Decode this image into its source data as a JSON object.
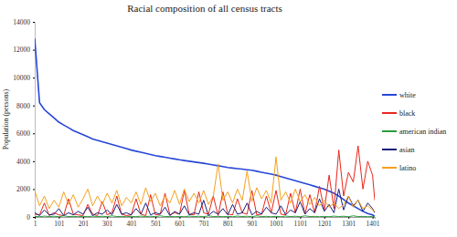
{
  "chart_data": {
    "type": "line",
    "title": "Racial composition of all census tracts",
    "y_label": "Population (persons)",
    "legend": "right",
    "x": [
      1,
      21,
      41,
      61,
      81,
      101,
      121,
      141,
      161,
      181,
      201,
      221,
      241,
      261,
      281,
      301,
      321,
      341,
      361,
      381,
      401,
      421,
      441,
      461,
      481,
      501,
      521,
      541,
      561,
      581,
      601,
      621,
      641,
      661,
      681,
      701,
      721,
      741,
      761,
      781,
      801,
      821,
      841,
      861,
      881,
      901,
      921,
      941,
      961,
      981,
      1001,
      1021,
      1041,
      1061,
      1081,
      1101,
      1121,
      1141,
      1161,
      1181,
      1201,
      1221,
      1241,
      1261,
      1281,
      1301,
      1321,
      1341,
      1361,
      1381,
      1401,
      1410
    ],
    "xlim": [
      1,
      1410
    ],
    "xticks": [
      1,
      101,
      201,
      301,
      401,
      501,
      601,
      701,
      801,
      901,
      1001,
      1101,
      1201,
      1301,
      1401
    ],
    "ylim": [
      0,
      14000
    ],
    "yticks": [
      0,
      2000,
      4000,
      6000,
      8000,
      10000,
      12000,
      14000
    ],
    "series": [
      {
        "name": "white",
        "color": "#2747d8",
        "values": [
          12800,
          8200,
          7700,
          7400,
          7100,
          6800,
          6600,
          6400,
          6200,
          6050,
          5900,
          5750,
          5600,
          5500,
          5400,
          5300,
          5200,
          5100,
          5000,
          4900,
          4800,
          4720,
          4640,
          4560,
          4480,
          4400,
          4340,
          4280,
          4220,
          4160,
          4100,
          4050,
          4000,
          3950,
          3900,
          3850,
          3790,
          3730,
          3670,
          3610,
          3550,
          3510,
          3470,
          3430,
          3390,
          3350,
          3280,
          3210,
          3140,
          3070,
          3000,
          2900,
          2800,
          2700,
          2600,
          2500,
          2400,
          2300,
          2200,
          2100,
          2000,
          1850,
          1700,
          1500,
          1250,
          1000,
          800,
          600,
          400,
          250,
          150,
          50
        ]
      },
      {
        "name": "black",
        "color": "#e8261c",
        "values": [
          200,
          150,
          1000,
          100,
          300,
          150,
          100,
          1300,
          200,
          150,
          100,
          900,
          200,
          100,
          1100,
          150,
          300,
          1500,
          200,
          100,
          150,
          1300,
          200,
          100,
          1600,
          150,
          200,
          1700,
          150,
          300,
          200,
          1900,
          200,
          150,
          1800,
          300,
          200,
          1500,
          100,
          1800,
          200,
          150,
          1300,
          300,
          200,
          1900,
          150,
          200,
          1500,
          300,
          1900,
          200,
          150,
          1700,
          300,
          2000,
          200,
          1600,
          300,
          2200,
          500,
          3000,
          600,
          4800,
          1500,
          3200,
          2500,
          5100,
          2000,
          4000,
          3000,
          1200
        ]
      },
      {
        "name": "american indian",
        "color": "#2a9d3a",
        "values": [
          40,
          20,
          60,
          30,
          50,
          20,
          80,
          30,
          40,
          20,
          40,
          20,
          60,
          30,
          50,
          20,
          80,
          30,
          40,
          20,
          40,
          20,
          60,
          30,
          50,
          20,
          80,
          30,
          40,
          20,
          40,
          20,
          60,
          30,
          50,
          20,
          80,
          30,
          40,
          20,
          40,
          20,
          60,
          30,
          50,
          20,
          80,
          30,
          40,
          20,
          40,
          20,
          60,
          30,
          50,
          20,
          80,
          30,
          40,
          20,
          40,
          20,
          60,
          30,
          50,
          20,
          80,
          30,
          40,
          20,
          40,
          20
        ]
      },
      {
        "name": "asian",
        "color": "#1c1f7a",
        "values": [
          300,
          100,
          500,
          150,
          200,
          600,
          100,
          300,
          150,
          400,
          200,
          700,
          100,
          300,
          200,
          500,
          150,
          900,
          200,
          300,
          150,
          600,
          200,
          1000,
          150,
          300,
          200,
          700,
          100,
          400,
          200,
          800,
          150,
          300,
          200,
          1200,
          100,
          400,
          200,
          600,
          150,
          900,
          200,
          300,
          1000,
          150,
          400,
          200,
          700,
          300,
          200,
          800,
          150,
          500,
          300,
          1100,
          200,
          600,
          300,
          1300,
          400,
          900,
          300,
          2000,
          500,
          1500,
          800,
          1200,
          400,
          1000,
          600,
          300
        ]
      },
      {
        "name": "latino",
        "color": "#f5a01e",
        "values": [
          1900,
          800,
          1500,
          600,
          1200,
          700,
          1800,
          900,
          1600,
          700,
          1300,
          2000,
          800,
          1500,
          900,
          1700,
          1000,
          1900,
          800,
          1400,
          1000,
          1800,
          900,
          2100,
          1100,
          1700,
          800,
          1500,
          1000,
          1900,
          900,
          2000,
          1100,
          1700,
          1000,
          1900,
          900,
          1500,
          3800,
          1200,
          1800,
          1000,
          2000,
          1200,
          3300,
          1100,
          2100,
          1300,
          1900,
          1000,
          4300,
          1200,
          1800,
          1000,
          2000,
          1100,
          1600,
          900,
          1400,
          800,
          1200,
          700,
          1000,
          600,
          900,
          1500,
          700,
          1200,
          600,
          800,
          500,
          400
        ]
      }
    ]
  }
}
